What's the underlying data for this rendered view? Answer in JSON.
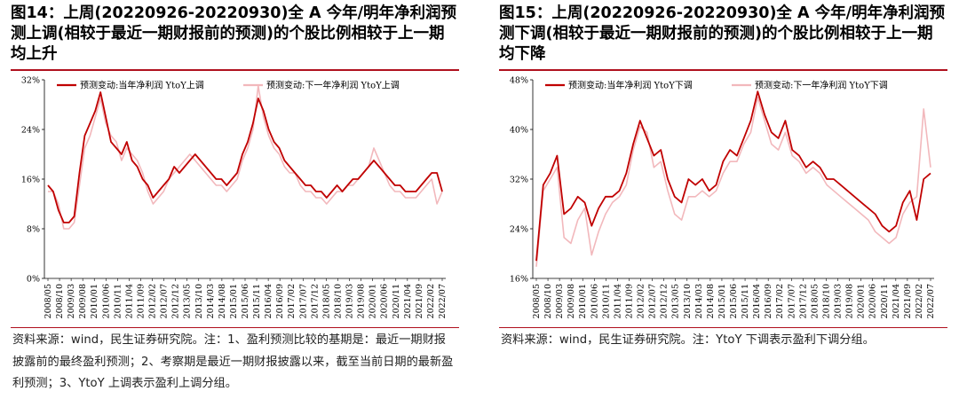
{
  "left": {
    "title": "图14：上周(20220926-20220930)全 A 今年/明年净利润预测上调(相较于最近一期财报前的预测)的个股比例相较于上一期均上升",
    "note": "资料来源：wind，民生证券研究院。注：1、盈利预测比较的基期是：最近一期财报披露前的最终盈利预测；2、考察期是最近一期财报披露以来，截至当前日期的最新盈利预测；3、YtoY 上调表示盈利上调分组。"
  },
  "right": {
    "title": "图15：上周(20220926-20220930)全 A 今年/明年净利润预测下调(相较于最近一期财报前的预测)的个股比例相较于上一期均下降",
    "note": "资料来源：wind，民生证券研究院。注：YtoY 下调表示盈利下调分组。"
  },
  "colors": {
    "series1": "#c00000",
    "series2": "#f2b8bc",
    "accent": "#b0101e"
  },
  "chart_data": [
    {
      "type": "line",
      "xlabel": "",
      "ylabel": "",
      "ylim": [
        0,
        32
      ],
      "yticks": [
        "0%",
        "8%",
        "16%",
        "24%",
        "32%"
      ],
      "x_tick_labels": [
        "2008/05",
        "2008/10",
        "2009/03",
        "2009/08",
        "2010/01",
        "2010/06",
        "2010/11",
        "2011/04",
        "2011/09",
        "2012/02",
        "2012/07",
        "2012/12",
        "2013/05",
        "2013/10",
        "2014/03",
        "2014/08",
        "2015/01",
        "2015/06",
        "2015/11",
        "2016/04",
        "2016/09",
        "2017/02",
        "2017/07",
        "2017/12",
        "2018/05",
        "2018/10",
        "2019/03",
        "2019/08",
        "2020/01",
        "2020/06",
        "2020/11",
        "2021/04",
        "2021/09",
        "2022/02",
        "2022/07"
      ],
      "legend": "top-left",
      "series": [
        {
          "name": "预测变动:当年净利润 YtoY上调",
          "values": [
            15,
            14,
            11,
            9,
            9,
            10,
            17,
            23,
            25,
            27,
            30,
            26,
            22,
            21,
            20,
            22,
            19,
            18,
            16,
            15,
            13,
            14,
            15,
            16,
            18,
            17,
            18,
            19,
            20,
            19,
            18,
            17,
            16,
            16,
            15,
            16,
            17,
            20,
            22,
            25,
            29,
            27,
            24,
            22,
            21,
            19,
            18,
            17,
            16,
            15,
            15,
            14,
            14,
            13,
            14,
            15,
            14,
            15,
            16,
            16,
            17,
            18,
            19,
            18,
            17,
            16,
            15,
            15,
            14,
            14,
            14,
            15,
            16,
            17,
            17,
            14
          ]
        },
        {
          "name": "预测变动:下一年净利润 YtoY上调",
          "values": [
            14,
            14,
            12,
            8,
            8,
            9,
            15,
            21,
            23,
            26,
            29,
            25,
            23,
            22,
            19,
            21,
            20,
            19,
            17,
            14,
            12,
            13,
            14,
            16,
            17,
            18,
            19,
            20,
            19,
            18,
            17,
            16,
            15,
            15,
            14,
            15,
            16,
            19,
            21,
            24,
            31,
            26,
            23,
            21,
            20,
            18,
            17,
            17,
            15,
            14,
            14,
            13,
            13,
            12,
            13,
            14,
            14,
            15,
            15,
            16,
            17,
            18,
            21,
            19,
            17,
            15,
            14,
            14,
            13,
            13,
            13,
            14,
            15,
            16,
            12,
            14
          ]
        }
      ]
    },
    {
      "type": "line",
      "xlabel": "",
      "ylabel": "",
      "ylim": [
        16,
        50
      ],
      "yticks": [
        "16%",
        "24%",
        "32%",
        "40%",
        "48%"
      ],
      "x_tick_labels": [
        "2008/05",
        "2008/10",
        "2009/03",
        "2009/08",
        "2010/01",
        "2010/06",
        "2010/11",
        "2011/04",
        "2011/09",
        "2012/02",
        "2012/07",
        "2012/12",
        "2013/05",
        "2013/10",
        "2014/03",
        "2014/08",
        "2015/01",
        "2015/06",
        "2015/11",
        "2016/04",
        "2016/09",
        "2017/02",
        "2017/07",
        "2017/12",
        "2018/05",
        "2018/10",
        "2019/03",
        "2019/08",
        "2020/01",
        "2020/06",
        "2020/11",
        "2021/04",
        "2021/09",
        "2022/02",
        "2022/07"
      ],
      "legend": "top-left",
      "series": [
        {
          "name": "预测变动:当年净利润 YtoY下调",
          "values": [
            19,
            32,
            34,
            37,
            27,
            28,
            30,
            29,
            25,
            28,
            30,
            30,
            31,
            34,
            39,
            43,
            40,
            37,
            38,
            33,
            30,
            29,
            33,
            32,
            33,
            31,
            32,
            36,
            38,
            37,
            40,
            43,
            48,
            44,
            41,
            40,
            43,
            38,
            37,
            35,
            36,
            35,
            33,
            33,
            32,
            31,
            30,
            29,
            28,
            27,
            25,
            24,
            25,
            29,
            31,
            26,
            33,
            34
          ]
        },
        {
          "name": "预测变动:下一年净利润 YtoY下调",
          "values": [
            18,
            31,
            33,
            35,
            23,
            22,
            26,
            28,
            20,
            24,
            27,
            29,
            30,
            32,
            38,
            42,
            41,
            35,
            36,
            31,
            27,
            26,
            30,
            30,
            31,
            30,
            31,
            34,
            36,
            36,
            39,
            41,
            47,
            43,
            39,
            38,
            41,
            37,
            36,
            34,
            35,
            34,
            32,
            31,
            30,
            29,
            28,
            27,
            26,
            24,
            23,
            22,
            23,
            27,
            29,
            30,
            45,
            35
          ]
        }
      ]
    }
  ]
}
